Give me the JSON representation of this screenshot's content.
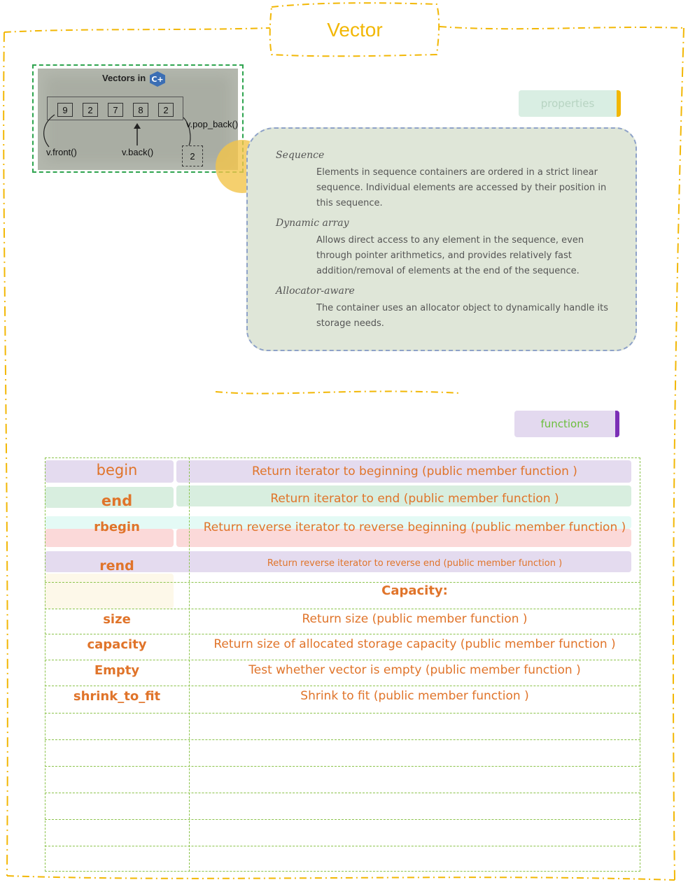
{
  "page": {
    "title": "Vector",
    "accent_colors": {
      "title": "#f2b705",
      "orange_text": "#e0742a",
      "grid": "#8bc34a",
      "frame": "#f2b705"
    }
  },
  "diagram": {
    "title": "Vectors in",
    "logo_text": "C+",
    "cells": [
      "9",
      "2",
      "7",
      "8",
      "2"
    ],
    "labels": {
      "front": "v.front()",
      "back": "v.back()",
      "pop_back": "v.pop_back()"
    },
    "popped_value": "2"
  },
  "properties": {
    "tab_label": "properties",
    "items": [
      {
        "term": "Sequence",
        "description": "Elements in sequence containers are ordered in a strict linear sequence. Individual elements are accessed by their position in this sequence."
      },
      {
        "term": "Dynamic array",
        "description": "Allows direct access to any element in the sequence, even through pointer arithmetics, and provides relatively fast addition/removal of elements at the end of the sequence."
      },
      {
        "term": "Allocator-aware",
        "description": "The container uses an allocator object to dynamically handle its storage needs."
      }
    ]
  },
  "functions": {
    "tab_label": "functions",
    "iterators": [
      {
        "name": "begin",
        "description": "Return iterator to beginning (public member function )"
      },
      {
        "name": "end",
        "description": "Return iterator to end (public member function )"
      },
      {
        "name": "rbegin",
        "description": "Return reverse iterator to reverse beginning (public member function )"
      },
      {
        "name": "rend",
        "description": "Return reverse iterator to reverse end (public member function )"
      }
    ],
    "capacity_heading": "Capacity:",
    "capacity": [
      {
        "name": "size",
        "description": "Return size (public member function )"
      },
      {
        "name": "capacity",
        "description": "Return size of allocated storage capacity (public member function )"
      },
      {
        "name": "Empty",
        "description": "Test whether vector is empty (public member function )"
      },
      {
        "name": "shrink_to_fit",
        "description": "Shrink to fit (public member function )"
      }
    ]
  }
}
